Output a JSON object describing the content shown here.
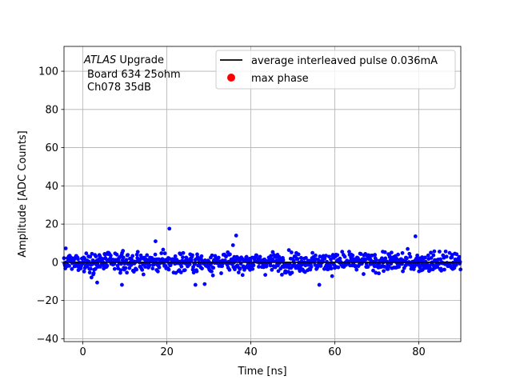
{
  "chart_data": {
    "type": "scatter",
    "xlabel": "Time [ns]",
    "ylabel": "Amplitude [ADC Counts]",
    "xlim": [
      -4.5,
      90
    ],
    "ylim": [
      -41.5,
      113
    ],
    "grid": true,
    "x_ticks": [
      0,
      20,
      40,
      60,
      80
    ],
    "y_ticks": [
      -40,
      -20,
      0,
      20,
      40,
      60,
      80,
      100
    ],
    "annotation": {
      "brand": "ATLAS",
      "brand_suffix": " Upgrade",
      "line2": "Board 634 25ohm",
      "line3": "Ch078 35dB"
    },
    "legend": {
      "placement": "top-right",
      "entries": [
        {
          "label": "average interleaved pulse 0.036mA",
          "kind": "line",
          "color": "#000000"
        },
        {
          "label": "max phase",
          "kind": "marker",
          "color": "#ff0000"
        }
      ]
    },
    "series": [
      {
        "kind": "line",
        "color": "#000000",
        "x": [
          -4.5,
          90
        ],
        "y": [
          0.0,
          0.0
        ]
      },
      {
        "kind": "points",
        "color": "#0000ff",
        "noise_band": {
          "x_start": -4.5,
          "x_end": 90,
          "dx": 0.104,
          "center": 0.0,
          "sigma": 3.6,
          "min": -12.0,
          "max": 14.0
        },
        "outliers": [
          {
            "x": 20.6,
            "y": 17.6
          },
          {
            "x": 17.3,
            "y": 11.0
          },
          {
            "x": 9.3,
            "y": -11.8
          },
          {
            "x": 3.4,
            "y": -10.6
          },
          {
            "x": 26.8,
            "y": -11.8
          },
          {
            "x": 36.5,
            "y": 14.0
          },
          {
            "x": 56.3,
            "y": -11.8
          },
          {
            "x": 79.2,
            "y": 13.6
          },
          {
            "x": 29.0,
            "y": -11.4
          }
        ]
      },
      {
        "kind": "points",
        "color": "#ff0000",
        "x": [],
        "y": []
      }
    ]
  }
}
